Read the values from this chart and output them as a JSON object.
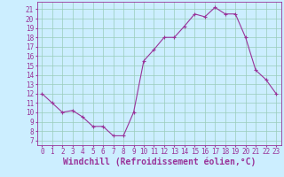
{
  "x": [
    0,
    1,
    2,
    3,
    4,
    5,
    6,
    7,
    8,
    9,
    10,
    11,
    12,
    13,
    14,
    15,
    16,
    17,
    18,
    19,
    20,
    21,
    22,
    23
  ],
  "y": [
    12.0,
    11.0,
    10.0,
    10.2,
    9.5,
    8.5,
    8.5,
    7.5,
    7.5,
    10.0,
    15.5,
    16.7,
    18.0,
    18.0,
    19.2,
    20.5,
    20.2,
    21.2,
    20.5,
    20.5,
    18.0,
    14.5,
    13.5,
    12.0
  ],
  "line_color": "#993399",
  "marker": "+",
  "marker_size": 3,
  "marker_color": "#993399",
  "bg_color": "#cceeff",
  "grid_color": "#99ccbb",
  "xlabel": "Windchill (Refroidissement éolien,°C)",
  "xlabel_color": "#993399",
  "ylabel_ticks": [
    7,
    8,
    9,
    10,
    11,
    12,
    13,
    14,
    15,
    16,
    17,
    18,
    19,
    20,
    21
  ],
  "ylim": [
    6.5,
    21.8
  ],
  "xlim": [
    -0.5,
    23.5
  ],
  "tick_color": "#993399",
  "tick_fontsize": 5.5,
  "label_fontsize": 7,
  "spine_color": "#993399",
  "linewidth": 0.8
}
